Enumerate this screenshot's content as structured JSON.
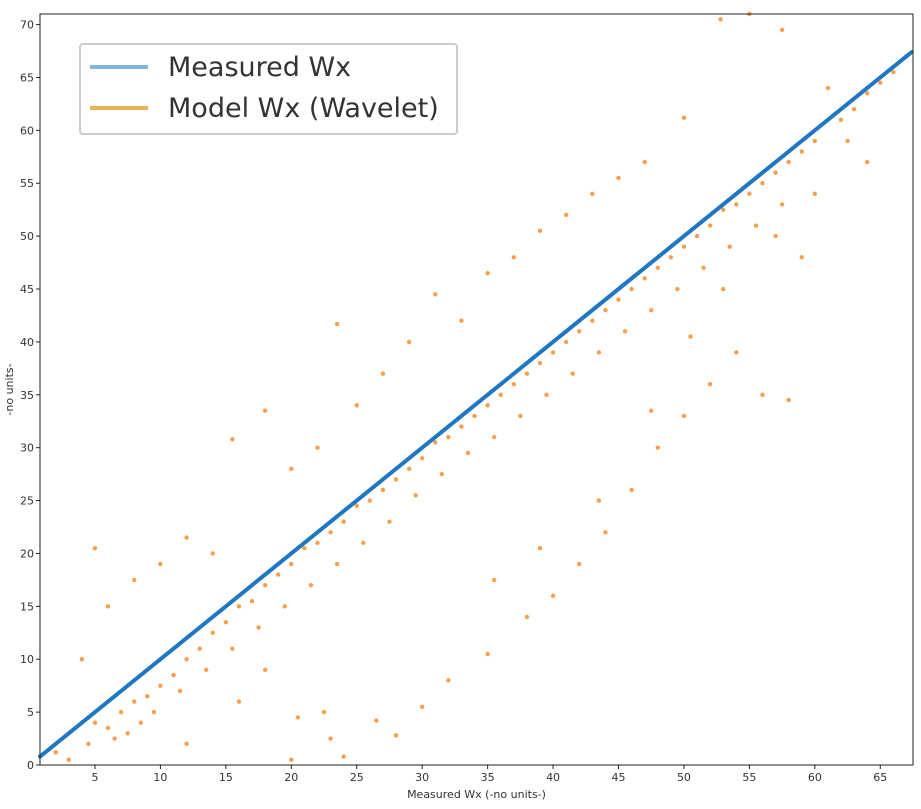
{
  "chart_data": {
    "type": "scatter",
    "xlabel": "Measured Wx (-no units-)",
    "ylabel": "-no units-",
    "xlim": [
      0.8,
      67.5
    ],
    "ylim": [
      0,
      71
    ],
    "x_ticks": [
      5,
      10,
      15,
      20,
      25,
      30,
      35,
      40,
      45,
      50,
      55,
      60,
      65
    ],
    "y_ticks": [
      0,
      5,
      10,
      15,
      20,
      25,
      30,
      35,
      40,
      45,
      50,
      55,
      60,
      65,
      70
    ],
    "grid": false,
    "legend_position": "top-left",
    "series": [
      {
        "name": "Measured Wx",
        "legend_color": "#7fb6dc",
        "color": "#1f77c4",
        "note_kind": "identity",
        "x_range": [
          0.8,
          67.4
        ]
      },
      {
        "name": "Model Wx (Wavelet)",
        "legend_color": "#e8b45a",
        "color": "#f7a04b",
        "points": [
          [
            2.0,
            1.2
          ],
          [
            3.0,
            0.5
          ],
          [
            4.5,
            2.0
          ],
          [
            5.0,
            4.0
          ],
          [
            6.0,
            3.5
          ],
          [
            7.0,
            5.0
          ],
          [
            8.0,
            6.0
          ],
          [
            9.0,
            6.5
          ],
          [
            10.0,
            7.5
          ],
          [
            11.0,
            8.5
          ],
          [
            12.0,
            10.0
          ],
          [
            13.0,
            11.0
          ],
          [
            14.0,
            12.5
          ],
          [
            15.0,
            13.5
          ],
          [
            16.0,
            15.0
          ],
          [
            17.0,
            15.5
          ],
          [
            18.0,
            17.0
          ],
          [
            19.0,
            18.0
          ],
          [
            20.0,
            19.0
          ],
          [
            21.0,
            20.5
          ],
          [
            22.0,
            21.0
          ],
          [
            23.0,
            22.0
          ],
          [
            24.0,
            23.0
          ],
          [
            25.0,
            24.5
          ],
          [
            26.0,
            25.0
          ],
          [
            27.0,
            26.0
          ],
          [
            28.0,
            27.0
          ],
          [
            29.0,
            28.0
          ],
          [
            30.0,
            29.0
          ],
          [
            31.0,
            30.5
          ],
          [
            32.0,
            31.0
          ],
          [
            33.0,
            32.0
          ],
          [
            34.0,
            33.0
          ],
          [
            35.0,
            34.0
          ],
          [
            36.0,
            35.0
          ],
          [
            37.0,
            36.0
          ],
          [
            38.0,
            37.0
          ],
          [
            39.0,
            38.0
          ],
          [
            40.0,
            39.0
          ],
          [
            41.0,
            40.0
          ],
          [
            42.0,
            41.0
          ],
          [
            43.0,
            42.0
          ],
          [
            44.0,
            43.0
          ],
          [
            45.0,
            44.0
          ],
          [
            46.0,
            45.0
          ],
          [
            47.0,
            46.0
          ],
          [
            48.0,
            47.0
          ],
          [
            49.0,
            48.0
          ],
          [
            50.0,
            49.0
          ],
          [
            51.0,
            50.0
          ],
          [
            52.0,
            51.0
          ],
          [
            53.0,
            52.5
          ],
          [
            54.0,
            53.0
          ],
          [
            55.0,
            54.0
          ],
          [
            56.0,
            55.0
          ],
          [
            57.0,
            56.0
          ],
          [
            58.0,
            57.0
          ],
          [
            59.0,
            58.0
          ],
          [
            60.0,
            59.0
          ],
          [
            62.0,
            61.0
          ],
          [
            63.0,
            62.0
          ],
          [
            64.0,
            63.5
          ],
          [
            65.0,
            64.5
          ],
          [
            66.0,
            65.5
          ],
          [
            67.0,
            67.0
          ],
          [
            4.0,
            10.0
          ],
          [
            5.0,
            20.5
          ],
          [
            6.0,
            15.0
          ],
          [
            8.0,
            17.5
          ],
          [
            10.0,
            19.0
          ],
          [
            12.0,
            21.5
          ],
          [
            14.0,
            20.0
          ],
          [
            15.5,
            30.8
          ],
          [
            18.0,
            33.5
          ],
          [
            20.0,
            28.0
          ],
          [
            22.0,
            30.0
          ],
          [
            23.5,
            41.7
          ],
          [
            25.0,
            34.0
          ],
          [
            27.0,
            37.0
          ],
          [
            29.0,
            40.0
          ],
          [
            31.0,
            44.5
          ],
          [
            33.0,
            42.0
          ],
          [
            35.0,
            46.5
          ],
          [
            37.0,
            48.0
          ],
          [
            39.0,
            50.5
          ],
          [
            41.0,
            52.0
          ],
          [
            43.0,
            54.0
          ],
          [
            45.0,
            55.5
          ],
          [
            47.0,
            57.0
          ],
          [
            50.0,
            61.2
          ],
          [
            52.8,
            70.5
          ],
          [
            55.0,
            71.0
          ],
          [
            57.5,
            69.5
          ],
          [
            61.0,
            64.0
          ],
          [
            62.5,
            59.0
          ],
          [
            64.0,
            57.0
          ],
          [
            66.0,
            66.0
          ],
          [
            12.0,
            2.0
          ],
          [
            16.0,
            6.0
          ],
          [
            18.0,
            9.0
          ],
          [
            20.0,
            0.5
          ],
          [
            23.0,
            2.5
          ],
          [
            24.0,
            0.8
          ],
          [
            22.5,
            5.0
          ],
          [
            28.0,
            2.8
          ],
          [
            30.0,
            5.5
          ],
          [
            32.0,
            8.0
          ],
          [
            35.0,
            10.5
          ],
          [
            38.0,
            14.0
          ],
          [
            40.0,
            16.0
          ],
          [
            42.0,
            19.0
          ],
          [
            44.0,
            22.0
          ],
          [
            46.0,
            26.0
          ],
          [
            48.0,
            30.0
          ],
          [
            50.0,
            33.0
          ],
          [
            52.0,
            36.0
          ],
          [
            54.0,
            39.0
          ],
          [
            56.0,
            35.0
          ],
          [
            58.0,
            34.5
          ],
          [
            59.0,
            48.0
          ],
          [
            20.5,
            4.5
          ],
          [
            26.5,
            4.2
          ],
          [
            35.5,
            17.5
          ],
          [
            39.0,
            20.5
          ],
          [
            43.5,
            25.0
          ],
          [
            47.5,
            33.5
          ],
          [
            50.5,
            40.5
          ],
          [
            53.0,
            45.0
          ],
          [
            57.0,
            50.0
          ],
          [
            60.0,
            54.0
          ],
          [
            6.5,
            2.5
          ],
          [
            7.5,
            3.0
          ],
          [
            8.5,
            4.0
          ],
          [
            9.5,
            5.0
          ],
          [
            11.5,
            7.0
          ],
          [
            13.5,
            9.0
          ],
          [
            15.5,
            11.0
          ],
          [
            17.5,
            13.0
          ],
          [
            19.5,
            15.0
          ],
          [
            21.5,
            17.0
          ],
          [
            23.5,
            19.0
          ],
          [
            25.5,
            21.0
          ],
          [
            27.5,
            23.0
          ],
          [
            29.5,
            25.5
          ],
          [
            31.5,
            27.5
          ],
          [
            33.5,
            29.5
          ],
          [
            35.5,
            31.0
          ],
          [
            37.5,
            33.0
          ],
          [
            39.5,
            35.0
          ],
          [
            41.5,
            37.0
          ],
          [
            43.5,
            39.0
          ],
          [
            45.5,
            41.0
          ],
          [
            47.5,
            43.0
          ],
          [
            49.5,
            45.0
          ],
          [
            51.5,
            47.0
          ],
          [
            53.5,
            49.0
          ],
          [
            55.5,
            51.0
          ],
          [
            57.5,
            53.0
          ]
        ]
      }
    ]
  }
}
